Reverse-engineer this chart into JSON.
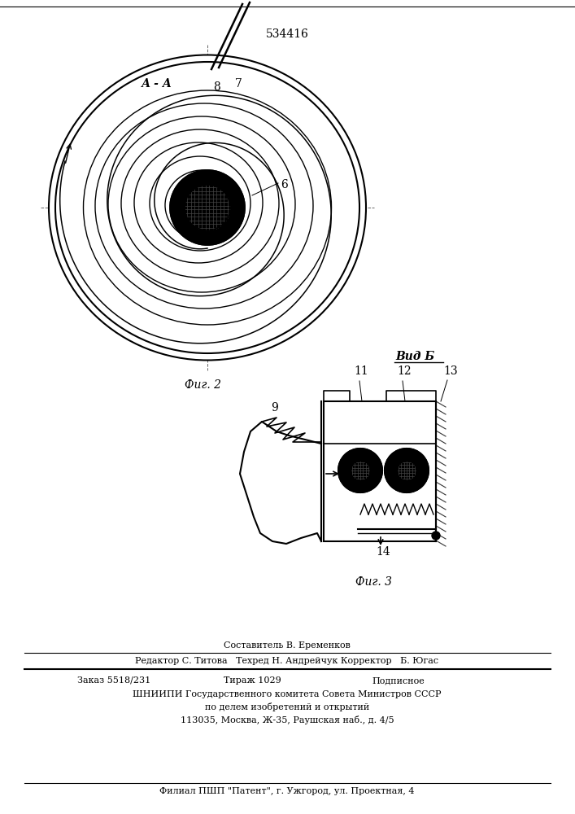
{
  "patent_number": "534416",
  "fig2_label": "Фиг. 2",
  "fig3_label": "Фиг. 3",
  "section_label": "А - А",
  "view_label": "Вид Б",
  "line_color": "#000000",
  "bg_color": "#ffffff"
}
